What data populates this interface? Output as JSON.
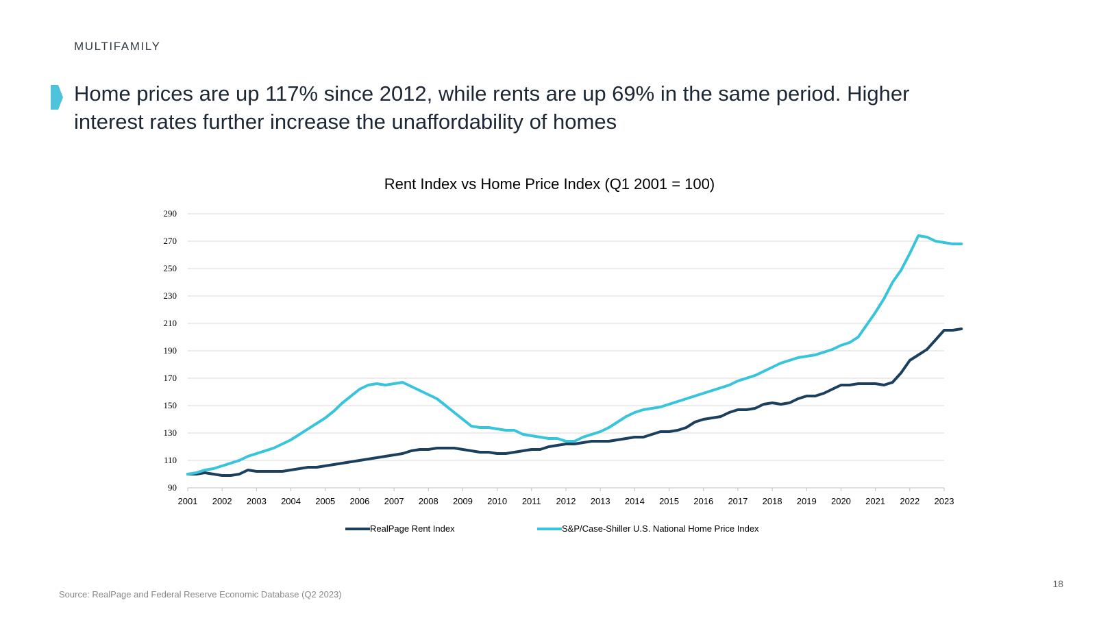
{
  "section_label": "MULTIFAMILY",
  "headline": {
    "line1": "Home prices are up 117% since 2012, while rents are up 69% in the same period. Higher",
    "line2": "interest rates further increase the unaffordability of homes"
  },
  "accent_color": "#4ec3db",
  "source": "Source: RealPage and Federal Reserve Economic Database (Q2 2023)",
  "page_number": "18",
  "chart_data": {
    "type": "line",
    "title": "Rent Index vs Home Price Index (Q1 2001 = 100)",
    "xlabel": "",
    "ylabel": "",
    "xlim": [
      2001,
      2023
    ],
    "ylim": [
      90,
      290
    ],
    "y_ticks": [
      "290",
      "270",
      "250",
      "230",
      "210",
      "190",
      "170",
      "150",
      "130",
      "110",
      "90"
    ],
    "x_ticks": [
      "2001",
      "2002",
      "2003",
      "2004",
      "2005",
      "2006",
      "2007",
      "2008",
      "2009",
      "2010",
      "2011",
      "2012",
      "2013",
      "2014",
      "2015",
      "2016",
      "2017",
      "2018",
      "2019",
      "2020",
      "2021",
      "2022",
      "2023"
    ],
    "grid": true,
    "legend_position": "bottom",
    "series": [
      {
        "name": "RealPage Rent Index",
        "color": "#1d3f5e",
        "points": [
          [
            2001.0,
            100
          ],
          [
            2001.25,
            100
          ],
          [
            2001.5,
            101
          ],
          [
            2001.75,
            100
          ],
          [
            2002.0,
            99
          ],
          [
            2002.25,
            99
          ],
          [
            2002.5,
            100
          ],
          [
            2002.75,
            103
          ],
          [
            2003.0,
            102
          ],
          [
            2003.25,
            102
          ],
          [
            2003.5,
            102
          ],
          [
            2003.75,
            102
          ],
          [
            2004.0,
            103
          ],
          [
            2004.25,
            104
          ],
          [
            2004.5,
            105
          ],
          [
            2004.75,
            105
          ],
          [
            2005.0,
            106
          ],
          [
            2005.25,
            107
          ],
          [
            2005.5,
            108
          ],
          [
            2005.75,
            109
          ],
          [
            2006.0,
            110
          ],
          [
            2006.25,
            111
          ],
          [
            2006.5,
            112
          ],
          [
            2006.75,
            113
          ],
          [
            2007.0,
            114
          ],
          [
            2007.25,
            115
          ],
          [
            2007.5,
            117
          ],
          [
            2007.75,
            118
          ],
          [
            2008.0,
            118
          ],
          [
            2008.25,
            119
          ],
          [
            2008.5,
            119
          ],
          [
            2008.75,
            119
          ],
          [
            2009.0,
            118
          ],
          [
            2009.25,
            117
          ],
          [
            2009.5,
            116
          ],
          [
            2009.75,
            116
          ],
          [
            2010.0,
            115
          ],
          [
            2010.25,
            115
          ],
          [
            2010.5,
            116
          ],
          [
            2010.75,
            117
          ],
          [
            2011.0,
            118
          ],
          [
            2011.25,
            118
          ],
          [
            2011.5,
            120
          ],
          [
            2011.75,
            121
          ],
          [
            2012.0,
            122
          ],
          [
            2012.25,
            122
          ],
          [
            2012.5,
            123
          ],
          [
            2012.75,
            124
          ],
          [
            2013.0,
            124
          ],
          [
            2013.25,
            124
          ],
          [
            2013.5,
            125
          ],
          [
            2013.75,
            126
          ],
          [
            2014.0,
            127
          ],
          [
            2014.25,
            127
          ],
          [
            2014.5,
            129
          ],
          [
            2014.75,
            131
          ],
          [
            2015.0,
            131
          ],
          [
            2015.25,
            132
          ],
          [
            2015.5,
            134
          ],
          [
            2015.75,
            138
          ],
          [
            2016.0,
            140
          ],
          [
            2016.25,
            141
          ],
          [
            2016.5,
            142
          ],
          [
            2016.75,
            145
          ],
          [
            2017.0,
            147
          ],
          [
            2017.25,
            147
          ],
          [
            2017.5,
            148
          ],
          [
            2017.75,
            151
          ],
          [
            2018.0,
            152
          ],
          [
            2018.25,
            151
          ],
          [
            2018.5,
            152
          ],
          [
            2018.75,
            155
          ],
          [
            2019.0,
            157
          ],
          [
            2019.25,
            157
          ],
          [
            2019.5,
            159
          ],
          [
            2019.75,
            162
          ],
          [
            2020.0,
            165
          ],
          [
            2020.25,
            165
          ],
          [
            2020.5,
            166
          ],
          [
            2020.75,
            166
          ],
          [
            2021.0,
            166
          ],
          [
            2021.25,
            165
          ],
          [
            2021.5,
            167
          ],
          [
            2021.75,
            174
          ],
          [
            2022.0,
            183
          ],
          [
            2022.25,
            187
          ],
          [
            2022.5,
            191
          ],
          [
            2022.75,
            198
          ],
          [
            2023.0,
            205
          ],
          [
            2023.25,
            205
          ],
          [
            2023.5,
            206
          ]
        ]
      },
      {
        "name": "S&P/Case-Shiller U.S. National Home Price Index",
        "color": "#38c4db",
        "points": [
          [
            2001.0,
            100
          ],
          [
            2001.25,
            101
          ],
          [
            2001.5,
            103
          ],
          [
            2001.75,
            104
          ],
          [
            2002.0,
            106
          ],
          [
            2002.25,
            108
          ],
          [
            2002.5,
            110
          ],
          [
            2002.75,
            113
          ],
          [
            2003.0,
            115
          ],
          [
            2003.25,
            117
          ],
          [
            2003.5,
            119
          ],
          [
            2003.75,
            122
          ],
          [
            2004.0,
            125
          ],
          [
            2004.25,
            129
          ],
          [
            2004.5,
            133
          ],
          [
            2004.75,
            137
          ],
          [
            2005.0,
            141
          ],
          [
            2005.25,
            146
          ],
          [
            2005.5,
            152
          ],
          [
            2005.75,
            157
          ],
          [
            2006.0,
            162
          ],
          [
            2006.25,
            165
          ],
          [
            2006.5,
            166
          ],
          [
            2006.75,
            165
          ],
          [
            2007.0,
            166
          ],
          [
            2007.25,
            167
          ],
          [
            2007.5,
            164
          ],
          [
            2007.75,
            161
          ],
          [
            2008.0,
            158
          ],
          [
            2008.25,
            155
          ],
          [
            2008.5,
            150
          ],
          [
            2008.75,
            145
          ],
          [
            2009.0,
            140
          ],
          [
            2009.25,
            135
          ],
          [
            2009.5,
            134
          ],
          [
            2009.75,
            134
          ],
          [
            2010.0,
            133
          ],
          [
            2010.25,
            132
          ],
          [
            2010.5,
            132
          ],
          [
            2010.75,
            129
          ],
          [
            2011.0,
            128
          ],
          [
            2011.25,
            127
          ],
          [
            2011.5,
            126
          ],
          [
            2011.75,
            126
          ],
          [
            2012.0,
            124
          ],
          [
            2012.25,
            124
          ],
          [
            2012.5,
            127
          ],
          [
            2012.75,
            129
          ],
          [
            2013.0,
            131
          ],
          [
            2013.25,
            134
          ],
          [
            2013.5,
            138
          ],
          [
            2013.75,
            142
          ],
          [
            2014.0,
            145
          ],
          [
            2014.25,
            147
          ],
          [
            2014.5,
            148
          ],
          [
            2014.75,
            149
          ],
          [
            2015.0,
            151
          ],
          [
            2015.25,
            153
          ],
          [
            2015.5,
            155
          ],
          [
            2015.75,
            157
          ],
          [
            2016.0,
            159
          ],
          [
            2016.25,
            161
          ],
          [
            2016.5,
            163
          ],
          [
            2016.75,
            165
          ],
          [
            2017.0,
            168
          ],
          [
            2017.25,
            170
          ],
          [
            2017.5,
            172
          ],
          [
            2017.75,
            175
          ],
          [
            2018.0,
            178
          ],
          [
            2018.25,
            181
          ],
          [
            2018.5,
            183
          ],
          [
            2018.75,
            185
          ],
          [
            2019.0,
            186
          ],
          [
            2019.25,
            187
          ],
          [
            2019.5,
            189
          ],
          [
            2019.75,
            191
          ],
          [
            2020.0,
            194
          ],
          [
            2020.25,
            196
          ],
          [
            2020.5,
            200
          ],
          [
            2020.75,
            209
          ],
          [
            2021.0,
            218
          ],
          [
            2021.25,
            228
          ],
          [
            2021.5,
            240
          ],
          [
            2021.75,
            249
          ],
          [
            2022.0,
            261
          ],
          [
            2022.25,
            274
          ],
          [
            2022.5,
            273
          ],
          [
            2022.75,
            270
          ],
          [
            2023.0,
            269
          ],
          [
            2023.25,
            268
          ],
          [
            2023.5,
            268
          ]
        ]
      }
    ]
  }
}
